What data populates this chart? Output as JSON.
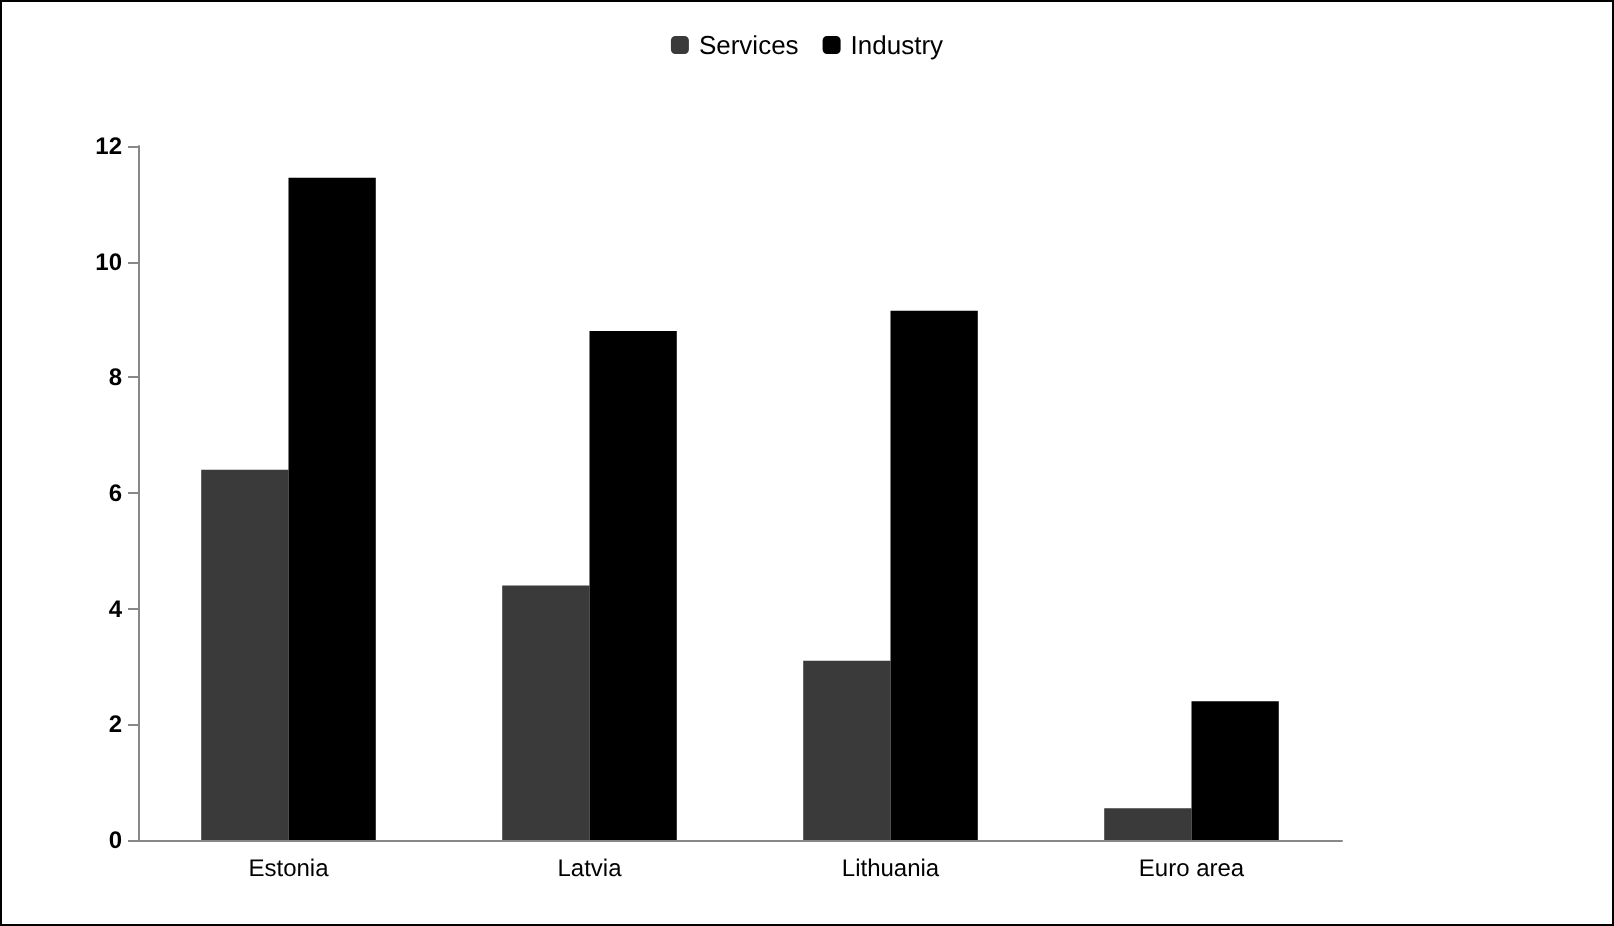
{
  "chart_data": {
    "type": "bar",
    "categories": [
      "Estonia",
      "Latvia",
      "Lithuania",
      "Euro area"
    ],
    "series": [
      {
        "name": "Services",
        "color": "#3a3a3a",
        "values": [
          6.4,
          4.4,
          3.1,
          0.55
        ]
      },
      {
        "name": "Industry",
        "color": "#000000",
        "values": [
          11.45,
          8.8,
          9.15,
          2.4
        ]
      }
    ],
    "ylim": [
      0,
      12
    ],
    "yticks": [
      0,
      2,
      4,
      6,
      8,
      10,
      12
    ],
    "grid": false,
    "legend": "top"
  }
}
